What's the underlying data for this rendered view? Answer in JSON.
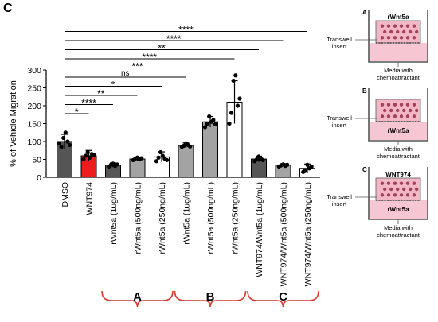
{
  "panel_label": "C",
  "chart_data": {
    "type": "bar",
    "ylabel": "% of Vehicle Migration",
    "ylim": [
      0,
      300
    ],
    "yticks": [
      0,
      50,
      100,
      150,
      200,
      250,
      300
    ],
    "categories": [
      "DMSO",
      "WNT974",
      "rWnt5a (1ug/mL)",
      "rWnt5a (500ng/mL)",
      "rWnt5a (250ng/mL)",
      "rWnt5a (1ug/mL)",
      "rWnt5a (500ng/mL)",
      "rWnt5a (250ng/mL)",
      "WNT974/Wnt5a (1ug/mL)",
      "WNT974/Wnt5a (500ng/mL)",
      "WNT974/Wnt5a (250ng/mL)"
    ],
    "values": [
      100,
      60,
      34,
      51,
      57,
      89,
      155,
      210,
      51,
      34,
      25
    ],
    "errors": [
      20,
      15,
      6,
      5,
      14,
      7,
      15,
      60,
      8,
      4,
      12
    ],
    "bar_colors": [
      "#555555",
      "#ee1c1c",
      "#555555",
      "#a3a3a3",
      "#ffffff",
      "#a3a3a3",
      "#a3a3a3",
      "#ffffff",
      "#555555",
      "#a3a3a3",
      "#ffffff"
    ],
    "points": [
      [
        95,
        85,
        110,
        125,
        100,
        90
      ],
      [
        50,
        60,
        70,
        55,
        65,
        62
      ],
      [
        30,
        35,
        38,
        32,
        36
      ],
      [
        48,
        52,
        55,
        50,
        53
      ],
      [
        45,
        55,
        70,
        60,
        52,
        48
      ],
      [
        85,
        88,
        95,
        90,
        86
      ],
      [
        140,
        150,
        170,
        155,
        160,
        148
      ],
      [
        150,
        180,
        270,
        285,
        200,
        220
      ],
      [
        45,
        50,
        58,
        52,
        48
      ],
      [
        30,
        33,
        36,
        32,
        35
      ],
      [
        15,
        20,
        35,
        25,
        30
      ]
    ],
    "comparisons": [
      {
        "target": 1,
        "label": "*"
      },
      {
        "target": 2,
        "label": "****"
      },
      {
        "target": 3,
        "label": "**"
      },
      {
        "target": 4,
        "label": "*"
      },
      {
        "target": 5,
        "label": "ns"
      },
      {
        "target": 6,
        "label": "***"
      },
      {
        "target": 7,
        "label": "****"
      },
      {
        "target": 8,
        "label": "**"
      },
      {
        "target": 9,
        "label": "****"
      },
      {
        "target": 10,
        "label": "****"
      }
    ],
    "groups": [
      {
        "label": "A",
        "from": 2,
        "to": 4
      },
      {
        "label": "B",
        "from": 5,
        "to": 7
      },
      {
        "label": "C",
        "from": 8,
        "to": 10
      }
    ]
  },
  "schematics": [
    {
      "letter": "A",
      "top_label": "rWnt5a",
      "bottom_label": "",
      "side_label": "Transwell\ninsert",
      "media_label": "Media with\nchemoattractant"
    },
    {
      "letter": "B",
      "top_label": "",
      "bottom_label": "rWnt5a",
      "side_label": "Transwell\ninsert",
      "media_label": "Media with\nchemoattractant"
    },
    {
      "letter": "C",
      "top_label": "WNT974",
      "bottom_label": "rWnt5a",
      "side_label": "Transwell\ninsert",
      "media_label": "Media with\nchemoattractant"
    }
  ]
}
